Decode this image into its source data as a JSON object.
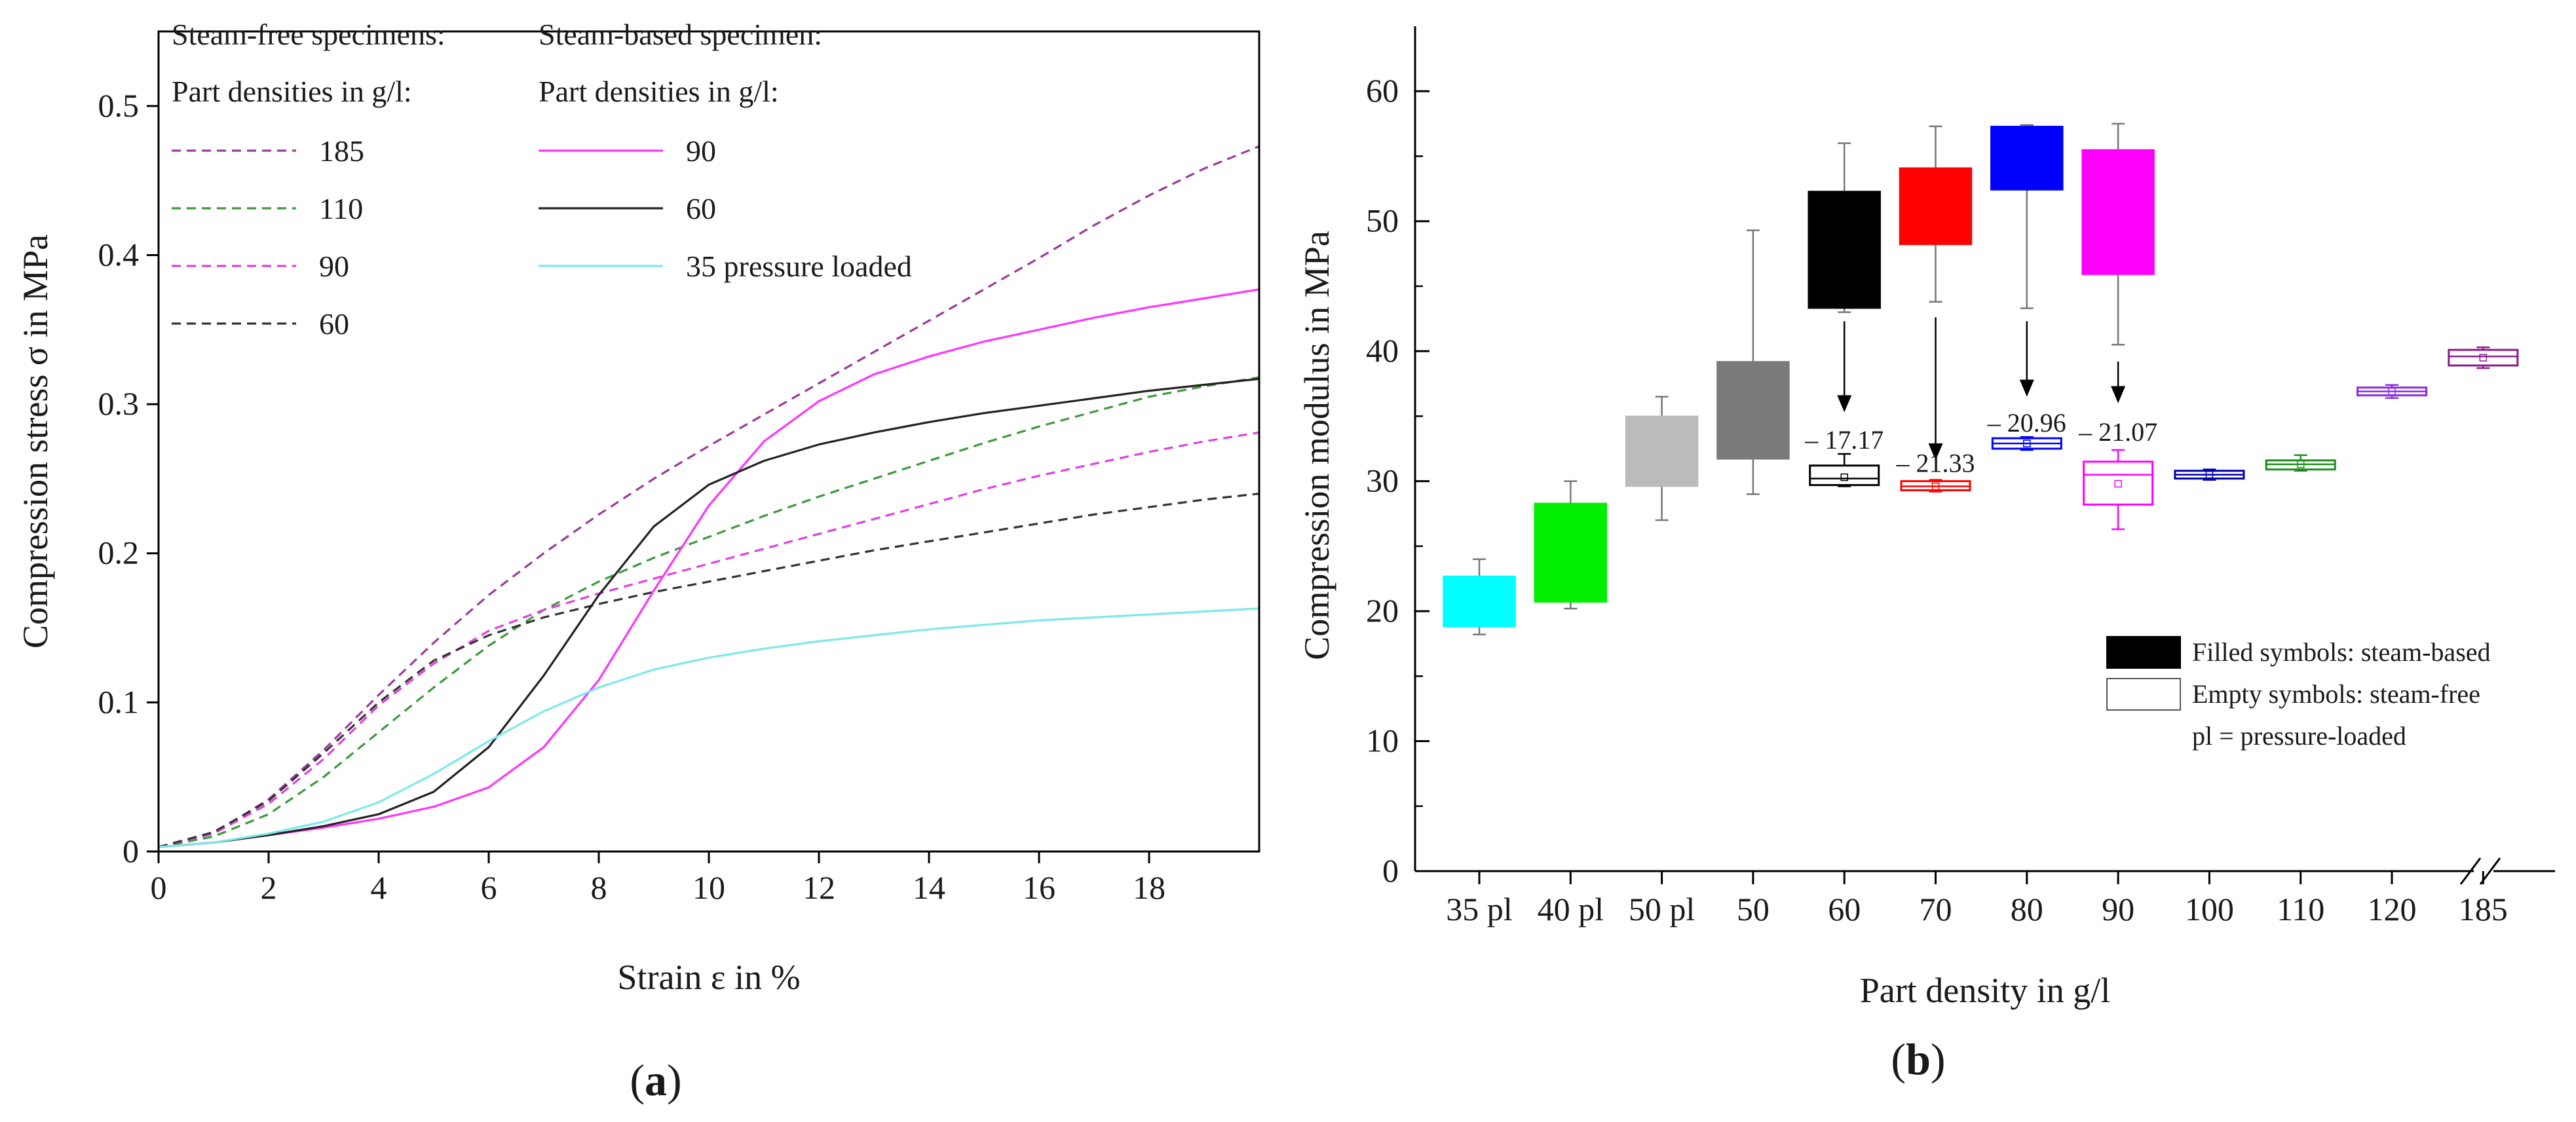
{
  "chart_data": [
    {
      "type": "line",
      "panel_label": "a",
      "xlabel": "Strain ε in %",
      "ylabel": "Compression stress σ in MPa",
      "xlim": [
        0,
        20
      ],
      "ylim": [
        0,
        0.55
      ],
      "xticks": [
        0,
        2,
        4,
        6,
        8,
        10,
        12,
        14,
        16,
        18
      ],
      "yticks": [
        0,
        0.1,
        0.2,
        0.3,
        0.4,
        0.5
      ],
      "ytick_labels": [
        "0",
        "0.1",
        "0.2",
        "0.3",
        "0.4",
        "0.5"
      ],
      "legend": {
        "group1_title": "Steam-free specimens:",
        "group1_subtitle": "Part densities in g/l:",
        "group2_title": "Steam-based specimen:",
        "group2_subtitle": "Part densities in g/l:"
      },
      "series": [
        {
          "name": "185",
          "group": "steam-free",
          "color": "#9b3a9b",
          "dash": "dashed",
          "x": [
            0,
            1,
            2,
            3,
            4,
            5,
            6,
            7,
            8,
            9,
            10,
            11,
            12,
            13,
            14,
            15,
            16,
            17,
            18,
            19,
            20
          ],
          "y": [
            0.003,
            0.012,
            0.035,
            0.068,
            0.105,
            0.14,
            0.172,
            0.2,
            0.226,
            0.25,
            0.272,
            0.293,
            0.314,
            0.335,
            0.356,
            0.377,
            0.398,
            0.42,
            0.44,
            0.458,
            0.473
          ]
        },
        {
          "name": "110",
          "group": "steam-free",
          "color": "#3a9a3a",
          "dash": "dashed",
          "x": [
            0,
            1,
            2,
            3,
            4,
            5,
            6,
            7,
            8,
            9,
            10,
            11,
            12,
            13,
            14,
            15,
            16,
            17,
            18,
            19,
            20
          ],
          "y": [
            0.003,
            0.01,
            0.025,
            0.05,
            0.08,
            0.11,
            0.138,
            0.162,
            0.181,
            0.197,
            0.211,
            0.225,
            0.238,
            0.25,
            0.262,
            0.274,
            0.285,
            0.295,
            0.305,
            0.312,
            0.318
          ]
        },
        {
          "name": "90",
          "group": "steam-free",
          "color": "#e040e0",
          "dash": "dashed",
          "x": [
            0,
            1,
            2,
            3,
            4,
            5,
            6,
            7,
            8,
            9,
            10,
            11,
            12,
            13,
            14,
            15,
            16,
            17,
            18,
            19,
            20
          ],
          "y": [
            0.003,
            0.012,
            0.032,
            0.062,
            0.098,
            0.126,
            0.148,
            0.162,
            0.173,
            0.183,
            0.193,
            0.203,
            0.213,
            0.223,
            0.233,
            0.243,
            0.252,
            0.26,
            0.268,
            0.275,
            0.281
          ]
        },
        {
          "name": "60",
          "group": "steam-free",
          "color": "#333333",
          "dash": "dashed",
          "x": [
            0,
            1,
            2,
            3,
            4,
            5,
            6,
            7,
            8,
            9,
            10,
            11,
            12,
            13,
            14,
            15,
            16,
            17,
            18,
            19,
            20
          ],
          "y": [
            0.003,
            0.013,
            0.034,
            0.066,
            0.1,
            0.128,
            0.145,
            0.157,
            0.166,
            0.174,
            0.181,
            0.188,
            0.195,
            0.202,
            0.208,
            0.214,
            0.22,
            0.226,
            0.231,
            0.236,
            0.24
          ]
        },
        {
          "name": "90",
          "group": "steam-based",
          "color": "#ff33ff",
          "dash": "solid",
          "x": [
            0,
            1,
            2,
            3,
            4,
            5,
            6,
            7,
            8,
            9,
            10,
            11,
            12,
            13,
            14,
            15,
            16,
            17,
            18,
            19,
            20
          ],
          "y": [
            0.003,
            0.006,
            0.011,
            0.016,
            0.022,
            0.03,
            0.043,
            0.07,
            0.115,
            0.175,
            0.232,
            0.275,
            0.302,
            0.32,
            0.332,
            0.342,
            0.35,
            0.358,
            0.365,
            0.371,
            0.377
          ]
        },
        {
          "name": "60",
          "group": "steam-based",
          "color": "#222222",
          "dash": "solid",
          "x": [
            0,
            1,
            2,
            3,
            4,
            5,
            6,
            7,
            8,
            9,
            10,
            11,
            12,
            13,
            14,
            15,
            16,
            17,
            18,
            19,
            20
          ],
          "y": [
            0.003,
            0.006,
            0.011,
            0.017,
            0.025,
            0.04,
            0.07,
            0.118,
            0.172,
            0.218,
            0.246,
            0.262,
            0.273,
            0.281,
            0.288,
            0.294,
            0.299,
            0.304,
            0.309,
            0.313,
            0.317
          ]
        },
        {
          "name": "35 pressure loaded",
          "group": "steam-based",
          "color": "#7ee8ea",
          "dash": "solid",
          "x": [
            0,
            1,
            2,
            3,
            4,
            5,
            6,
            7,
            8,
            9,
            10,
            11,
            12,
            13,
            14,
            15,
            16,
            17,
            18,
            19,
            20
          ],
          "y": [
            0.003,
            0.006,
            0.012,
            0.02,
            0.033,
            0.052,
            0.074,
            0.094,
            0.11,
            0.122,
            0.13,
            0.136,
            0.141,
            0.145,
            0.149,
            0.152,
            0.155,
            0.157,
            0.159,
            0.161,
            0.163
          ]
        }
      ]
    },
    {
      "type": "box",
      "panel_label": "b",
      "xlabel": "Part density in g/l",
      "ylabel": "Compression modulus in MPa",
      "ylim": [
        0,
        65
      ],
      "yticks": [
        0,
        10,
        20,
        30,
        40,
        50,
        60
      ],
      "categories": [
        "35 pl",
        "40 pl",
        "50 pl",
        "50",
        "60",
        "70",
        "80",
        "90",
        "100",
        "110",
        "120",
        "185"
      ],
      "axis_break_between": [
        "120",
        "185"
      ],
      "boxes": [
        {
          "category": "35 pl",
          "type": "filled",
          "color": "#00ffff",
          "q1": 18.8,
          "q3": 22.7,
          "median": 20.5,
          "mean": 20.5,
          "min": 18.2,
          "max": 24.0
        },
        {
          "category": "40 pl",
          "type": "filled",
          "color": "#00ee00",
          "q1": 20.7,
          "q3": 28.3,
          "median": 24.5,
          "mean": 24.5,
          "min": 20.2,
          "max": 30.0
        },
        {
          "category": "50 pl",
          "type": "filled",
          "color": "#bbbbbb",
          "q1": 29.6,
          "q3": 35.0,
          "median": 32.3,
          "mean": 32.3,
          "min": 27.0,
          "max": 36.5
        },
        {
          "category": "50",
          "type": "filled",
          "color": "#7a7a7a",
          "q1": 31.7,
          "q3": 39.2,
          "median": 35.5,
          "mean": 35.5,
          "min": 29.0,
          "max": 49.3
        },
        {
          "category": "60",
          "type": "filled",
          "color": "#000000",
          "q1": 43.3,
          "q3": 52.3,
          "median": 47.8,
          "mean": 47.8,
          "min": 43.0,
          "max": 56.0
        },
        {
          "category": "70",
          "type": "filled",
          "color": "#ff0000",
          "q1": 48.2,
          "q3": 54.1,
          "median": 51.2,
          "mean": 51.2,
          "min": 43.8,
          "max": 57.3
        },
        {
          "category": "80",
          "type": "filled",
          "color": "#0000ff",
          "q1": 52.4,
          "q3": 57.3,
          "median": 54.8,
          "mean": 54.8,
          "min": 43.3,
          "max": 57.4
        },
        {
          "category": "90",
          "type": "filled",
          "color": "#ff00ff",
          "q1": 45.9,
          "q3": 55.5,
          "median": 50.7,
          "mean": 50.7,
          "min": 40.5,
          "max": 57.5
        },
        {
          "category": "60",
          "type": "empty",
          "color": "#000000",
          "q1": 29.7,
          "q3": 31.2,
          "median": 30.2,
          "mean": 30.3,
          "min": 29.6,
          "max": 32.1
        },
        {
          "category": "70",
          "type": "empty",
          "color": "#ff0000",
          "q1": 29.3,
          "q3": 30.0,
          "median": 29.6,
          "mean": 29.6,
          "min": 29.2,
          "max": 30.1
        },
        {
          "category": "80",
          "type": "empty",
          "color": "#0000ff",
          "q1": 32.5,
          "q3": 33.3,
          "median": 32.9,
          "mean": 32.9,
          "min": 32.4,
          "max": 33.4
        },
        {
          "category": "90",
          "type": "empty",
          "color": "#ff00ff",
          "q1": 28.2,
          "q3": 31.5,
          "median": 30.5,
          "mean": 29.8,
          "min": 26.3,
          "max": 32.4
        },
        {
          "category": "100",
          "type": "empty",
          "color": "#0000aa",
          "q1": 30.2,
          "q3": 30.8,
          "median": 30.5,
          "mean": 30.5,
          "min": 30.1,
          "max": 30.9
        },
        {
          "category": "110",
          "type": "empty",
          "color": "#1a8f1a",
          "q1": 30.9,
          "q3": 31.6,
          "median": 31.3,
          "mean": 31.3,
          "min": 30.8,
          "max": 32.0
        },
        {
          "category": "120",
          "type": "empty",
          "color": "#8a2be2",
          "q1": 36.6,
          "q3": 37.2,
          "median": 36.9,
          "mean": 36.9,
          "min": 36.4,
          "max": 37.4
        },
        {
          "category": "185",
          "type": "empty",
          "color": "#8b1a8b",
          "q1": 38.9,
          "q3": 40.1,
          "median": 39.6,
          "mean": 39.5,
          "min": 38.7,
          "max": 40.3
        }
      ],
      "reductions": [
        {
          "category": "60",
          "label": "– 17.17",
          "from": 42.3,
          "to": 35.3,
          "label_y": 32.5
        },
        {
          "category": "70",
          "label": "– 21.33",
          "from": 42.6,
          "to": 31.6,
          "label_y": 30.7
        },
        {
          "category": "80",
          "label": "– 20.96",
          "from": 42.3,
          "to": 36.5,
          "label_y": 33.8
        },
        {
          "category": "90",
          "label": "– 21.07",
          "from": 39.2,
          "to": 36.0,
          "label_y": 33.1
        }
      ],
      "legend": {
        "filled": "Filled symbols: steam-based",
        "empty": "Empty symbols: steam-free",
        "note": "pl = pressure-loaded"
      }
    }
  ],
  "captions": {
    "a": "a",
    "b": "b"
  }
}
